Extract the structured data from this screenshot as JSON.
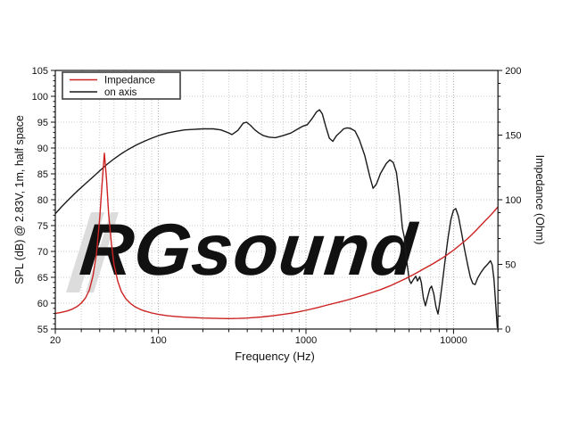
{
  "watermark": {
    "text": "RGsound",
    "color": "#dcdcdc"
  },
  "legend": {
    "position": "top-left",
    "items": [
      {
        "label": "Impedance",
        "color": "#cc2222"
      },
      {
        "label": "on axis",
        "color": "#1a1a1a"
      }
    ]
  },
  "colors": {
    "impedance_curve": "#cc2222",
    "spl_curve": "#1a1a1a",
    "grid_minor": "#c8c8c8",
    "grid_decade": "#a8a8a8",
    "frame": "#111111",
    "watermark": "#dcdcdc"
  },
  "chart_data": {
    "type": "line",
    "title": "",
    "xlabel": "Frequency (Hz)",
    "ylabel_left": "SPL (dB) @ 2.83V, 1m, half space",
    "ylabel_right": "Impedance (Ohm)",
    "grid": true,
    "legend_position": "top-left",
    "x_axis": {
      "scale": "log",
      "min": 20,
      "max": 20000,
      "major_ticks": [
        20,
        100,
        1000,
        10000
      ],
      "major_tick_labels": [
        "20",
        "100",
        "1000",
        "10000"
      ]
    },
    "y_left_axis": {
      "min": 55,
      "max": 105,
      "ticks": [
        55,
        60,
        65,
        70,
        75,
        80,
        85,
        90,
        95,
        100,
        105
      ],
      "minor_step": 1
    },
    "y_right_axis": {
      "min": 0,
      "max": 200,
      "ticks": [
        0,
        50,
        100,
        150,
        200
      ],
      "minor_step": 10
    },
    "series": [
      {
        "name": "on axis",
        "axis": "left",
        "unit": "dB SPL",
        "color": "#1a1a1a",
        "points": [
          [
            20,
            77.3
          ],
          [
            22,
            78.6
          ],
          [
            25,
            80.2
          ],
          [
            28,
            81.6
          ],
          [
            32,
            83.1
          ],
          [
            36,
            84.4
          ],
          [
            40,
            85.6
          ],
          [
            45,
            86.9
          ],
          [
            50,
            87.9
          ],
          [
            56,
            88.9
          ],
          [
            63,
            89.8
          ],
          [
            71,
            90.6
          ],
          [
            80,
            91.3
          ],
          [
            90,
            91.9
          ],
          [
            100,
            92.4
          ],
          [
            115,
            92.9
          ],
          [
            130,
            93.2
          ],
          [
            150,
            93.5
          ],
          [
            175,
            93.6
          ],
          [
            200,
            93.7
          ],
          [
            235,
            93.7
          ],
          [
            265,
            93.5
          ],
          [
            295,
            93.0
          ],
          [
            315,
            92.6
          ],
          [
            345,
            93.4
          ],
          [
            375,
            94.8
          ],
          [
            395,
            95.0
          ],
          [
            420,
            94.4
          ],
          [
            450,
            93.5
          ],
          [
            480,
            92.9
          ],
          [
            515,
            92.4
          ],
          [
            560,
            92.1
          ],
          [
            620,
            92.0
          ],
          [
            700,
            92.4
          ],
          [
            790,
            92.9
          ],
          [
            870,
            93.6
          ],
          [
            950,
            94.2
          ],
          [
            1020,
            94.5
          ],
          [
            1100,
            95.7
          ],
          [
            1180,
            97.0
          ],
          [
            1235,
            97.4
          ],
          [
            1290,
            96.6
          ],
          [
            1360,
            94.2
          ],
          [
            1440,
            91.9
          ],
          [
            1520,
            91.3
          ],
          [
            1610,
            92.4
          ],
          [
            1700,
            93.0
          ],
          [
            1800,
            93.7
          ],
          [
            1900,
            93.9
          ],
          [
            2000,
            93.8
          ],
          [
            2150,
            93.3
          ],
          [
            2300,
            91.6
          ],
          [
            2500,
            88.6
          ],
          [
            2700,
            84.6
          ],
          [
            2850,
            82.2
          ],
          [
            3000,
            83.0
          ],
          [
            3200,
            85.1
          ],
          [
            3500,
            87.0
          ],
          [
            3700,
            87.7
          ],
          [
            3900,
            87.2
          ],
          [
            4100,
            85.3
          ],
          [
            4300,
            80.5
          ],
          [
            4500,
            74.5
          ],
          [
            4650,
            72.6
          ],
          [
            4800,
            68.5
          ],
          [
            5000,
            64.6
          ],
          [
            5150,
            63.8
          ],
          [
            5350,
            64.6
          ],
          [
            5550,
            65.2
          ],
          [
            5700,
            64.3
          ],
          [
            5900,
            65.1
          ],
          [
            6050,
            64.0
          ],
          [
            6250,
            61.0
          ],
          [
            6450,
            59.5
          ],
          [
            6650,
            61.0
          ],
          [
            6900,
            62.8
          ],
          [
            7100,
            63.3
          ],
          [
            7350,
            61.8
          ],
          [
            7600,
            59.3
          ],
          [
            7850,
            57.9
          ],
          [
            8100,
            60.5
          ],
          [
            8400,
            64.0
          ],
          [
            8800,
            68.6
          ],
          [
            9200,
            72.8
          ],
          [
            9600,
            76.2
          ],
          [
            10000,
            78.0
          ],
          [
            10350,
            78.3
          ],
          [
            10800,
            76.8
          ],
          [
            11300,
            73.8
          ],
          [
            11900,
            70.3
          ],
          [
            12500,
            67.3
          ],
          [
            13000,
            65.0
          ],
          [
            13500,
            63.8
          ],
          [
            14000,
            63.6
          ],
          [
            14600,
            64.9
          ],
          [
            15300,
            65.9
          ],
          [
            16100,
            66.8
          ],
          [
            17000,
            67.5
          ],
          [
            17800,
            68.2
          ],
          [
            18300,
            67.4
          ],
          [
            18800,
            64.5
          ],
          [
            19300,
            60.0
          ],
          [
            19800,
            55.2
          ]
        ]
      },
      {
        "name": "Impedance",
        "axis": "right",
        "unit": "Ohm",
        "color": "#cc2222",
        "points": [
          [
            20,
            12.0
          ],
          [
            22,
            12.9
          ],
          [
            24,
            13.9
          ],
          [
            26,
            15.3
          ],
          [
            28,
            17.3
          ],
          [
            30,
            20.0
          ],
          [
            32,
            24.0
          ],
          [
            34,
            30.0
          ],
          [
            36,
            41.0
          ],
          [
            38,
            58.0
          ],
          [
            40,
            86.0
          ],
          [
            41.5,
            112.0
          ],
          [
            43,
            136.0
          ],
          [
            44.5,
            116.0
          ],
          [
            46,
            89.0
          ],
          [
            48,
            66.0
          ],
          [
            50,
            50.0
          ],
          [
            53,
            37.0
          ],
          [
            56,
            29.0
          ],
          [
            60,
            23.5
          ],
          [
            65,
            19.5
          ],
          [
            70,
            17.0
          ],
          [
            75,
            15.3
          ],
          [
            80,
            14.1
          ],
          [
            90,
            12.4
          ],
          [
            100,
            11.3
          ],
          [
            115,
            10.3
          ],
          [
            130,
            9.7
          ],
          [
            150,
            9.2
          ],
          [
            175,
            8.8
          ],
          [
            200,
            8.5
          ],
          [
            250,
            8.2
          ],
          [
            300,
            8.1
          ],
          [
            350,
            8.2
          ],
          [
            400,
            8.5
          ],
          [
            450,
            8.9
          ],
          [
            500,
            9.3
          ],
          [
            600,
            10.3
          ],
          [
            700,
            11.3
          ],
          [
            800,
            12.3
          ],
          [
            900,
            13.4
          ],
          [
            1000,
            14.5
          ],
          [
            1200,
            16.6
          ],
          [
            1400,
            18.6
          ],
          [
            1700,
            21.0
          ],
          [
            2000,
            23.1
          ],
          [
            2400,
            25.8
          ],
          [
            2800,
            28.3
          ],
          [
            3200,
            30.5
          ],
          [
            3700,
            33.3
          ],
          [
            4200,
            36.2
          ],
          [
            4800,
            39.3
          ],
          [
            5500,
            42.8
          ],
          [
            6300,
            46.6
          ],
          [
            7200,
            50.3
          ],
          [
            8200,
            54.2
          ],
          [
            9000,
            57.2
          ],
          [
            10000,
            61.0
          ],
          [
            11000,
            64.8
          ],
          [
            12500,
            70.0
          ],
          [
            14000,
            75.5
          ],
          [
            16000,
            82.5
          ],
          [
            18000,
            88.5
          ],
          [
            20000,
            94.5
          ]
        ]
      }
    ]
  }
}
